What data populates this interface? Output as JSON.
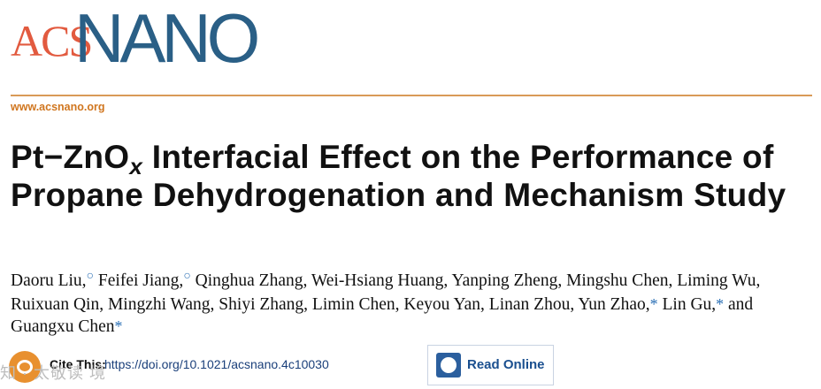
{
  "journal": {
    "logo_acs": "ACS",
    "logo_nano": "NANO",
    "url": "www.acsnano.org"
  },
  "article": {
    "title_part1": "Pt−ZnO",
    "title_sub": "x",
    "title_part2": " Interfacial Effect on the Performance of Propane Dehydrogenation and Mechanism Study"
  },
  "authors": {
    "a1": "Daoru Liu,",
    "a2": "Feifei Jiang,",
    "rest": "Qinghua Zhang, Wei-Hsiang Huang, Yanping Zheng, Mingshu Chen, Liming Wu, Ruixuan Qin, Mingzhi Wang, Shiyi Zhang, Limin Chen, Keyou Yan, Linan Zhou,",
    "a_last1": "Yun Zhao,",
    "a_last2": "Lin Gu,",
    "a_last3": "and Guangxu Chen",
    "equal_mark": "○",
    "corr_mark": "*"
  },
  "cite": {
    "label": "Cite This:",
    "doi": "https://doi.org/10.1021/acsnano.4c10030"
  },
  "read_online": {
    "label": "Read Online"
  },
  "watermark": "知 · 太敬读 境",
  "colors": {
    "acs_red": "#e25a3f",
    "nano_blue": "#2a5f86",
    "rule_orange": "#d99a57",
    "link_blue": "#2a6fb5"
  }
}
